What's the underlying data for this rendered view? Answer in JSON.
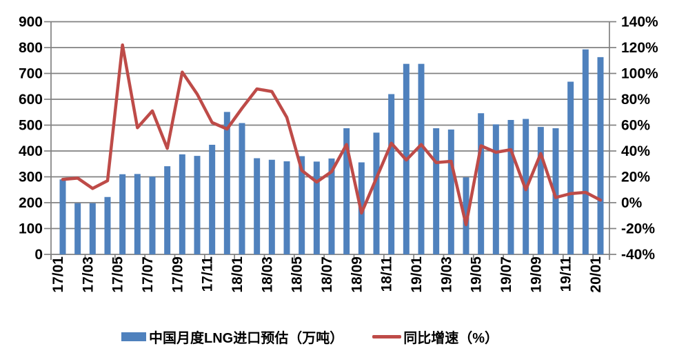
{
  "chart_data": {
    "type": "combo-bar-line",
    "title": "",
    "categories": [
      "17/01",
      "17/02",
      "17/03",
      "17/04",
      "17/05",
      "17/06",
      "17/07",
      "17/08",
      "17/09",
      "17/10",
      "17/11",
      "17/12",
      "18/01",
      "18/02",
      "18/03",
      "18/04",
      "18/05",
      "18/06",
      "18/07",
      "18/08",
      "18/09",
      "18/10",
      "18/11",
      "18/12",
      "19/01",
      "19/02",
      "19/03",
      "19/04",
      "19/05",
      "19/06",
      "19/07",
      "19/08",
      "19/09",
      "19/10",
      "19/11",
      "19/12",
      "20/01"
    ],
    "x_tick_labels": [
      "17/01",
      "17/03",
      "17/05",
      "17/07",
      "17/09",
      "17/11",
      "18/01",
      "18/03",
      "18/05",
      "18/07",
      "18/09",
      "18/11",
      "19/01",
      "19/03",
      "19/05",
      "19/07",
      "19/09",
      "19/11",
      "20/01"
    ],
    "series": [
      {
        "name": "中国月度LNG进口预估（万吨）",
        "type": "bar",
        "axis": "left",
        "color": "#4F81BD",
        "values": [
          290,
          198,
          198,
          222,
          310,
          311,
          301,
          341,
          387,
          381,
          424,
          551,
          508,
          372,
          366,
          360,
          380,
          359,
          371,
          488,
          356,
          471,
          620,
          737,
          737,
          488,
          483,
          298,
          546,
          503,
          520,
          524,
          493,
          488,
          668,
          793,
          763
        ]
      },
      {
        "name": "同比增速（%）",
        "type": "line",
        "axis": "right",
        "color": "#BE4B48",
        "values": [
          18,
          19,
          11,
          17,
          122,
          58,
          71,
          42,
          101,
          84,
          62,
          57,
          73,
          88,
          86,
          66,
          25,
          16,
          24,
          45,
          -8,
          19,
          46,
          33,
          45,
          31,
          32,
          -17,
          44,
          39,
          41,
          10,
          38,
          4,
          7,
          8,
          2
        ]
      }
    ],
    "left_axis": {
      "min": 0,
      "max": 900,
      "step": 100,
      "tick_labels": [
        "0",
        "100",
        "200",
        "300",
        "400",
        "500",
        "600",
        "700",
        "800",
        "900"
      ]
    },
    "right_axis": {
      "min": -40,
      "max": 140,
      "step": 20,
      "tick_labels": [
        "-40%",
        "-20%",
        "0%",
        "20%",
        "40%",
        "60%",
        "80%",
        "100%",
        "120%",
        "140%"
      ]
    },
    "grid": true,
    "grid_color": "#808080",
    "legend_position": "bottom"
  }
}
